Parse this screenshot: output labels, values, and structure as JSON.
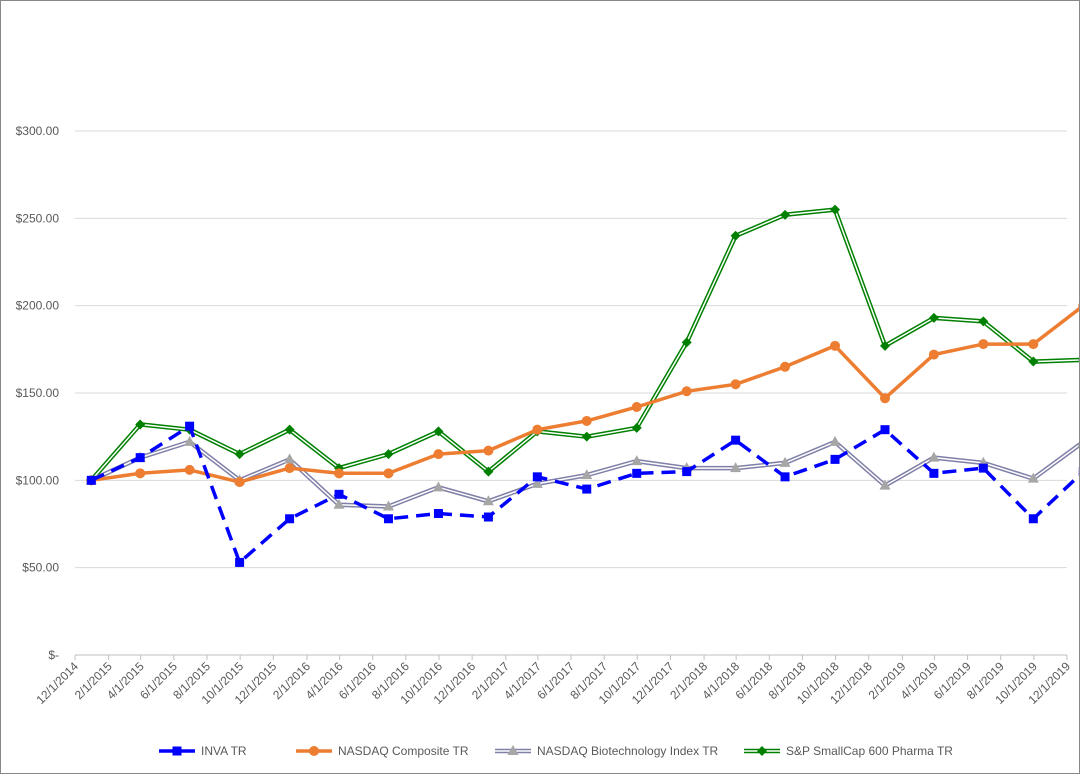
{
  "chart_data": {
    "type": "line",
    "title": "",
    "xlabel": "",
    "ylabel": "",
    "ylim": [
      0,
      300
    ],
    "yticks": [
      0,
      50,
      100,
      150,
      200,
      250,
      300
    ],
    "ytick_labels": [
      "$-",
      "$50.00",
      "$100.00",
      "$150.00",
      "$200.00",
      "$250.00",
      "$300.00"
    ],
    "grid": "horizontal",
    "legend_position": "bottom",
    "x_tick_labels": [
      "12/1/2014",
      "2/1/2015",
      "4/1/2015",
      "6/1/2015",
      "8/1/2015",
      "10/1/2015",
      "12/1/2015",
      "2/1/2016",
      "4/1/2016",
      "6/1/2016",
      "8/1/2016",
      "10/1/2016",
      "12/1/2016",
      "2/1/2017",
      "4/1/2017",
      "6/1/2017",
      "8/1/2017",
      "10/1/2017",
      "12/1/2017",
      "2/1/2018",
      "4/1/2018",
      "6/1/2018",
      "8/1/2018",
      "10/1/2018",
      "12/1/2018",
      "2/1/2019",
      "4/1/2019",
      "6/1/2019",
      "8/1/2019",
      "10/1/2019",
      "12/1/2019"
    ],
    "x": [
      "12/31/2014",
      "3/31/2015",
      "6/30/2015",
      "9/30/2015",
      "12/31/2015",
      "3/31/2016",
      "6/30/2016",
      "9/30/2016",
      "12/31/2016",
      "3/31/2017",
      "6/30/2017",
      "9/30/2017",
      "12/31/2017",
      "3/31/2018",
      "6/30/2018",
      "9/30/2018",
      "12/31/2018",
      "3/31/2019",
      "6/30/2019",
      "9/30/2019",
      "12/31/2019"
    ],
    "series": [
      {
        "name": "INVA TR",
        "color": "#0000ff",
        "marker": "square",
        "style": "dashed",
        "values": [
          100,
          113,
          131,
          53,
          78,
          92,
          78,
          81,
          79,
          102,
          95,
          104,
          105,
          123,
          102,
          112,
          129,
          104,
          107,
          78,
          105
        ]
      },
      {
        "name": "NASDAQ Composite TR",
        "color": "#ed7d31",
        "marker": "circle",
        "style": "solid",
        "values": [
          100,
          104,
          106,
          99,
          107,
          104,
          104,
          115,
          117,
          129,
          134,
          142,
          151,
          155,
          165,
          177,
          147,
          172,
          178,
          178,
          200
        ]
      },
      {
        "name": "NASDAQ Biotechnology Index TR",
        "color": "#7f7fa8",
        "marker": "triangle",
        "style": "double",
        "values": [
          100,
          113,
          122,
          100,
          112,
          86,
          85,
          96,
          88,
          98,
          103,
          111,
          107,
          107,
          110,
          122,
          97,
          113,
          110,
          101,
          122
        ]
      },
      {
        "name": "S&P SmallCap 600 Pharma TR",
        "color": "#008000",
        "marker": "diamond",
        "style": "double",
        "values": [
          100,
          132,
          129,
          115,
          129,
          107,
          115,
          128,
          105,
          128,
          125,
          130,
          179,
          240,
          252,
          255,
          177,
          193,
          191,
          168,
          169
        ]
      }
    ]
  }
}
